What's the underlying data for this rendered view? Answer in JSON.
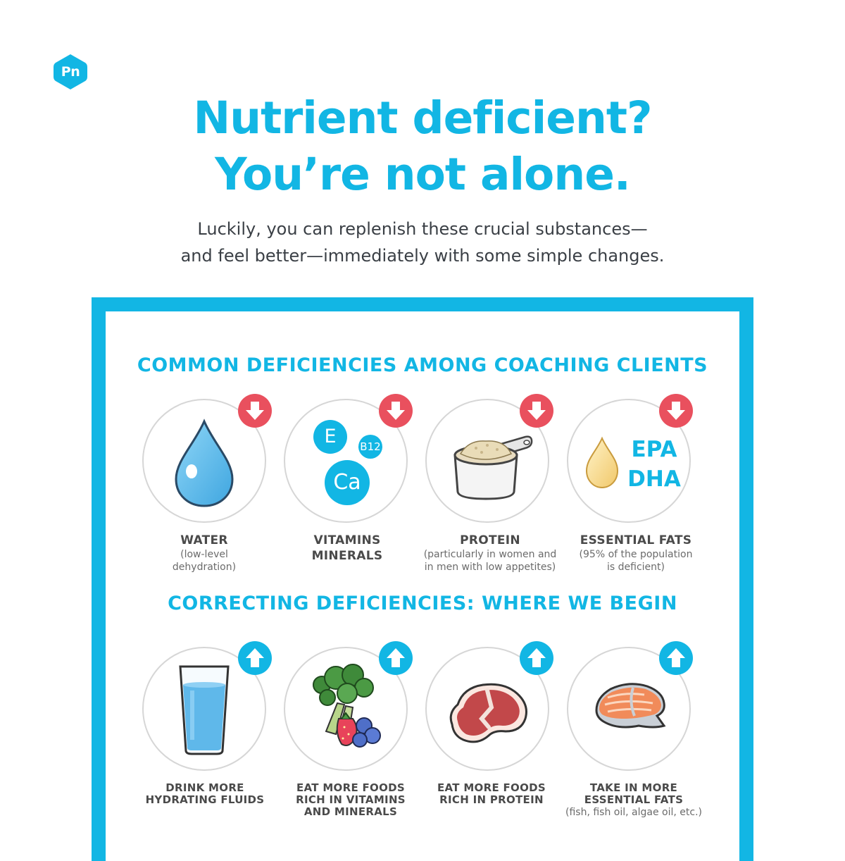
{
  "logo": {
    "text": "Pn",
    "color": "#12b6e4"
  },
  "header": {
    "title_lines": [
      "Nutrient deficient?",
      "You’re not alone."
    ],
    "subtitle_lines": [
      "Luckily, you can replenish these crucial substances—",
      "and feel better—immediately with some simple changes."
    ]
  },
  "colors": {
    "accent": "#12b6e4",
    "down_badge": "#e9505e",
    "up_badge": "#12b6e4",
    "text": "#3d3d3d"
  },
  "deficiencies": {
    "title": "COMMON DEFICIENCIES AMONG COACHING CLIENTS",
    "items": [
      {
        "icon": "water-drop-icon",
        "label": [
          "WATER"
        ],
        "note": [
          "(low-level",
          "dehydration)"
        ],
        "badge": "down-arrow-icon"
      },
      {
        "icon": "vitamins-minerals-icon",
        "label": [
          "VITAMINS",
          "MINERALS"
        ],
        "note": [],
        "badge": "down-arrow-icon",
        "bubbles": {
          "e": "E",
          "b12": "B12",
          "ca": "Ca"
        }
      },
      {
        "icon": "protein-scoop-icon",
        "label": [
          "PROTEIN"
        ],
        "note": [
          "(particularly in women and",
          "in men with low appetites)"
        ],
        "badge": "down-arrow-icon"
      },
      {
        "icon": "oil-drop-icon",
        "label": [
          "ESSENTIAL FATS"
        ],
        "note": [
          "(95% of the population",
          "is deficient)"
        ],
        "badge": "down-arrow-icon",
        "epa": "EPA",
        "dha": "DHA"
      }
    ]
  },
  "corrections": {
    "title": "CORRECTING DEFICIENCIES: WHERE WE BEGIN",
    "items": [
      {
        "icon": "water-glass-icon",
        "label": [
          "DRINK MORE",
          "HYDRATING FLUIDS"
        ],
        "note": [],
        "badge": "up-arrow-icon"
      },
      {
        "icon": "vegetables-fruit-icon",
        "label": [
          "EAT MORE FOODS",
          "RICH IN VITAMINS",
          "AND MINERALS"
        ],
        "note": [],
        "badge": "up-arrow-icon"
      },
      {
        "icon": "steak-icon",
        "label": [
          "EAT MORE FOODS",
          "RICH IN PROTEIN"
        ],
        "note": [],
        "badge": "up-arrow-icon"
      },
      {
        "icon": "salmon-icon",
        "label": [
          "TAKE IN MORE",
          "ESSENTIAL FATS"
        ],
        "note": [
          "(fish, fish oil, algae oil, etc.)"
        ],
        "badge": "up-arrow-icon"
      }
    ]
  }
}
